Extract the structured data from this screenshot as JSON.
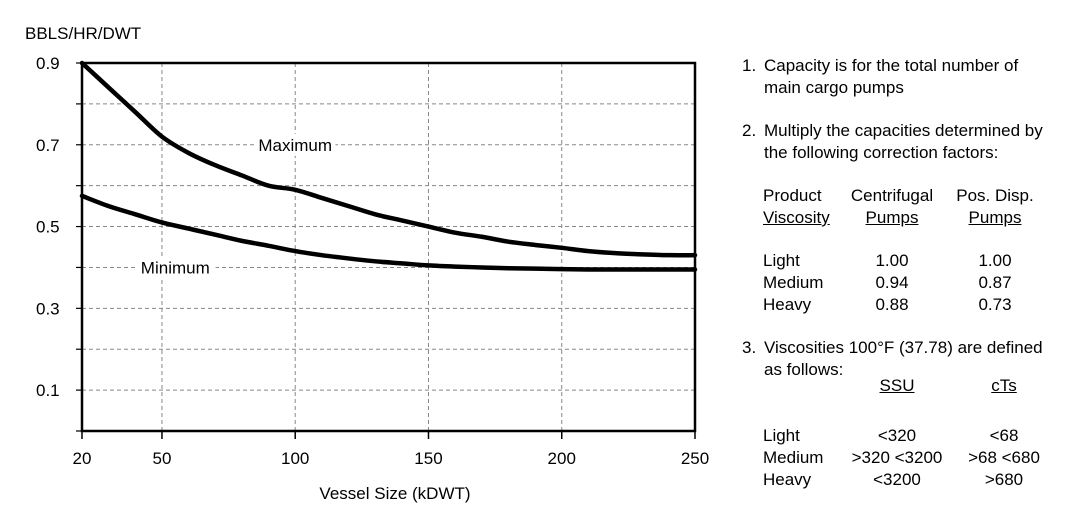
{
  "chart_data": {
    "type": "line",
    "ylabel": "BBLS/HR/DWT",
    "xlabel": "Vessel Size (kDWT)",
    "xlim": [
      20,
      250
    ],
    "ylim": [
      0,
      0.9
    ],
    "x_ticks": [
      20,
      50,
      100,
      150,
      200,
      250
    ],
    "y_ticks": [
      0.1,
      0.3,
      0.5,
      0.7,
      0.9
    ],
    "grid": true,
    "series": [
      {
        "name": "Maximum",
        "x": [
          20,
          30,
          40,
          50,
          60,
          70,
          80,
          90,
          100,
          110,
          120,
          130,
          140,
          150,
          160,
          170,
          180,
          190,
          200,
          210,
          220,
          230,
          240,
          250
        ],
        "y": [
          0.9,
          0.84,
          0.78,
          0.72,
          0.68,
          0.65,
          0.625,
          0.6,
          0.59,
          0.57,
          0.55,
          0.53,
          0.515,
          0.5,
          0.485,
          0.475,
          0.463,
          0.455,
          0.448,
          0.44,
          0.435,
          0.432,
          0.43,
          0.43
        ]
      },
      {
        "name": "Minimum",
        "x": [
          20,
          30,
          40,
          50,
          60,
          70,
          80,
          90,
          100,
          110,
          120,
          130,
          140,
          150,
          160,
          170,
          180,
          190,
          200,
          210,
          220,
          230,
          240,
          250
        ],
        "y": [
          0.575,
          0.55,
          0.53,
          0.51,
          0.495,
          0.48,
          0.465,
          0.453,
          0.44,
          0.43,
          0.422,
          0.415,
          0.41,
          0.405,
          0.402,
          0.4,
          0.398,
          0.397,
          0.396,
          0.395,
          0.395,
          0.395,
          0.395,
          0.395
        ]
      }
    ]
  },
  "notes": {
    "n1_num": "1.",
    "n1_text": "Capacity is for the total number of main cargo pumps",
    "n2_num": "2.",
    "n2_text": "Multiply the capacities determined by the following correction factors:",
    "n3_num": "3.",
    "n3_text": "Viscosities 100°F (37.78) are defined as follows:"
  },
  "correction_table": {
    "headers": [
      [
        "Product",
        "Centrifugal",
        "Pos. Disp."
      ],
      [
        "Viscosity",
        "Pumps",
        "Pumps"
      ]
    ],
    "rows": [
      [
        "Light",
        "1.00",
        "1.00"
      ],
      [
        "Medium",
        "0.94",
        "0.87"
      ],
      [
        "Heavy",
        "0.88",
        "0.73"
      ]
    ]
  },
  "viscosity_table": {
    "headers": [
      "SSU",
      "cTs"
    ],
    "rows": [
      [
        "Light",
        "<320",
        "<68"
      ],
      [
        "Medium",
        ">320 <3200",
        ">68 <680"
      ],
      [
        "Heavy",
        "<3200",
        ">680"
      ]
    ]
  }
}
